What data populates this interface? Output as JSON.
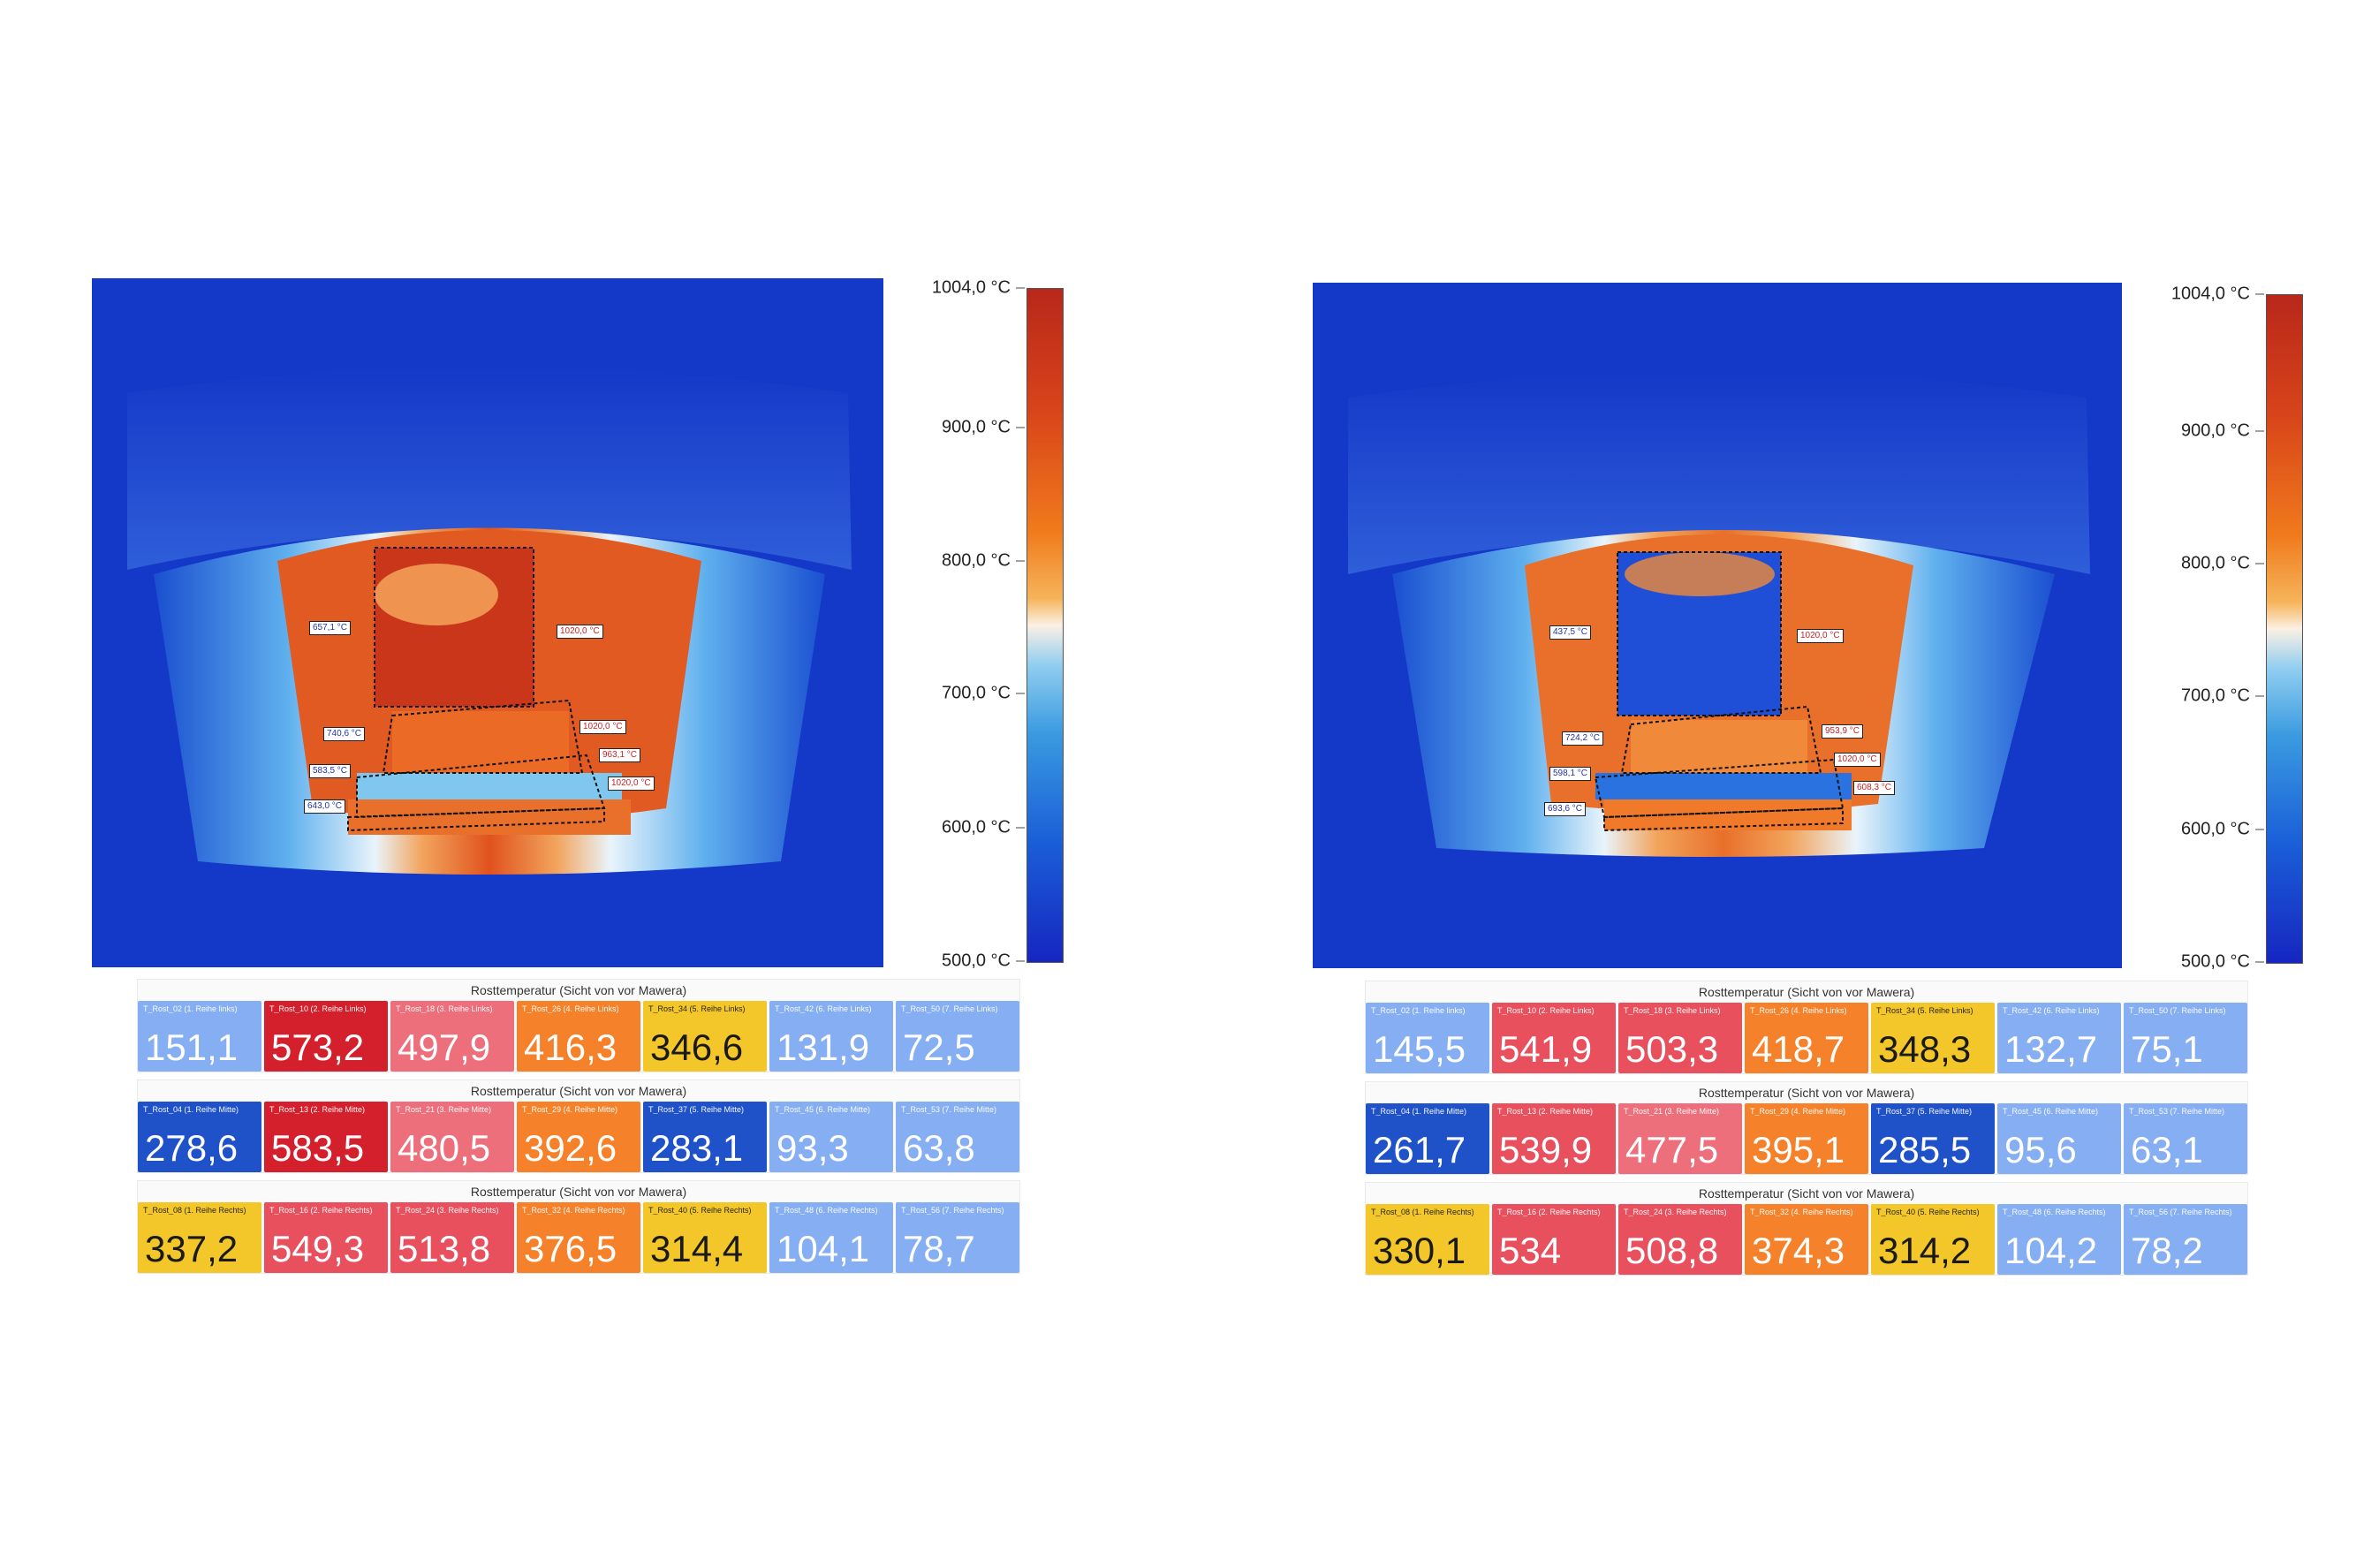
{
  "colors": {
    "thermal_background": "#1438c8",
    "hot": "#cf3a1c",
    "tile_red_dark": "#d4202c",
    "tile_red": "#e8505e",
    "tile_pink": "#ee6f7c",
    "tile_orange": "#f5822a",
    "tile_yellow": "#f3c629",
    "tile_blue_dark": "#1f52c8",
    "tile_blue_light": "#86aef2"
  },
  "panels": [
    {
      "colorbar": {
        "ticks": [
          "1004,0 °C",
          "900,0 °C",
          "800,0 °C",
          "700,0 °C",
          "600,0 °C",
          "500,0 °C"
        ]
      },
      "annotations": [
        {
          "text": "657,1 °C",
          "color": "blue"
        },
        {
          "text": "1020,0 °C",
          "color": "red"
        },
        {
          "text": "740,6 °C",
          "color": "blue"
        },
        {
          "text": "1020,0 °C",
          "color": "red"
        },
        {
          "text": "583,5 °C",
          "color": "blue"
        },
        {
          "text": "963,1 °C",
          "color": "red"
        },
        {
          "text": "1020,0 °C",
          "color": "red"
        },
        {
          "text": "643,0 °C",
          "color": "blue"
        }
      ],
      "groups": [
        {
          "title": "Rosttemperatur (Sicht von vor Mawera)",
          "tiles": [
            {
              "label": "T_Rost_02 (1. Reihe links)",
              "value": "151,1",
              "color": "blue_light"
            },
            {
              "label": "T_Rost_10 (2. Reihe Links)",
              "value": "573,2",
              "color": "red_dark"
            },
            {
              "label": "T_Rost_18 (3. Reihe Links)",
              "value": "497,9",
              "color": "pink"
            },
            {
              "label": "T_Rost_26 (4. Reihe Links)",
              "value": "416,3",
              "color": "orange"
            },
            {
              "label": "T_Rost_34 (5. Reihe Links)",
              "value": "346,6",
              "color": "yellow"
            },
            {
              "label": "T_Rost_42 (6. Reihe Links)",
              "value": "131,9",
              "color": "blue_light"
            },
            {
              "label": "T_Rost_50 (7. Reihe Links)",
              "value": "72,5",
              "color": "blue_light"
            }
          ]
        },
        {
          "title": "Rosttemperatur (Sicht von vor Mawera)",
          "tiles": [
            {
              "label": "T_Rost_04 (1. Reihe Mitte)",
              "value": "278,6",
              "color": "blue_dark"
            },
            {
              "label": "T_Rost_13 (2. Reihe Mitte)",
              "value": "583,5",
              "color": "red_dark"
            },
            {
              "label": "T_Rost_21 (3. Reihe Mitte)",
              "value": "480,5",
              "color": "pink"
            },
            {
              "label": "T_Rost_29 (4. Reihe Mitte)",
              "value": "392,6",
              "color": "orange"
            },
            {
              "label": "T_Rost_37 (5. Reihe Mitte)",
              "value": "283,1",
              "color": "blue_dark"
            },
            {
              "label": "T_Rost_45 (6. Reihe Mitte)",
              "value": "93,3",
              "color": "blue_light"
            },
            {
              "label": "T_Rost_53 (7. Reihe Mitte)",
              "value": "63,8",
              "color": "blue_light"
            }
          ]
        },
        {
          "title": "Rosttemperatur (Sicht von vor Mawera)",
          "tiles": [
            {
              "label": "T_Rost_08 (1. Reihe Rechts)",
              "value": "337,2",
              "color": "yellow"
            },
            {
              "label": "T_Rost_16 (2. Reihe Rechts)",
              "value": "549,3",
              "color": "red"
            },
            {
              "label": "T_Rost_24 (3. Reihe Rechts)",
              "value": "513,8",
              "color": "red"
            },
            {
              "label": "T_Rost_32 (4. Reihe Rechts)",
              "value": "376,5",
              "color": "orange"
            },
            {
              "label": "T_Rost_40 (5. Reihe Rechts)",
              "value": "314,4",
              "color": "yellow"
            },
            {
              "label": "T_Rost_48 (6. Reihe Rechts)",
              "value": "104,1",
              "color": "blue_light"
            },
            {
              "label": "T_Rost_56 (7. Reihe Rechts)",
              "value": "78,7",
              "color": "blue_light"
            }
          ]
        }
      ]
    },
    {
      "colorbar": {
        "ticks": [
          "1004,0 °C",
          "900,0 °C",
          "800,0 °C",
          "700,0 °C",
          "600,0 °C",
          "500,0 °C"
        ]
      },
      "annotations": [
        {
          "text": "437,5 °C",
          "color": "blue"
        },
        {
          "text": "1020,0 °C",
          "color": "red"
        },
        {
          "text": "724,2 °C",
          "color": "blue"
        },
        {
          "text": "953,9 °C",
          "color": "red"
        },
        {
          "text": "598,1 °C",
          "color": "blue"
        },
        {
          "text": "1020,0 °C",
          "color": "red"
        },
        {
          "text": "693,6 °C",
          "color": "blue"
        },
        {
          "text": "608,3 °C",
          "color": "red"
        }
      ],
      "groups": [
        {
          "title": "Rosttemperatur (Sicht von vor Mawera)",
          "tiles": [
            {
              "label": "T_Rost_02 (1. Reihe links)",
              "value": "145,5",
              "color": "blue_light"
            },
            {
              "label": "T_Rost_10 (2. Reihe Links)",
              "value": "541,9",
              "color": "red"
            },
            {
              "label": "T_Rost_18 (3. Reihe Links)",
              "value": "503,3",
              "color": "red"
            },
            {
              "label": "T_Rost_26 (4. Reihe Links)",
              "value": "418,7",
              "color": "orange"
            },
            {
              "label": "T_Rost_34 (5. Reihe Links)",
              "value": "348,3",
              "color": "yellow"
            },
            {
              "label": "T_Rost_42 (6. Reihe Links)",
              "value": "132,7",
              "color": "blue_light"
            },
            {
              "label": "T_Rost_50 (7. Reihe Links)",
              "value": "75,1",
              "color": "blue_light"
            }
          ]
        },
        {
          "title": "Rosttemperatur (Sicht von vor Mawera)",
          "tiles": [
            {
              "label": "T_Rost_04 (1. Reihe Mitte)",
              "value": "261,7",
              "color": "blue_dark"
            },
            {
              "label": "T_Rost_13 (2. Reihe Mitte)",
              "value": "539,9",
              "color": "red"
            },
            {
              "label": "T_Rost_21 (3. Reihe Mitte)",
              "value": "477,5",
              "color": "pink"
            },
            {
              "label": "T_Rost_29 (4. Reihe Mitte)",
              "value": "395,1",
              "color": "orange"
            },
            {
              "label": "T_Rost_37 (5. Reihe Mitte)",
              "value": "285,5",
              "color": "blue_dark"
            },
            {
              "label": "T_Rost_45 (6. Reihe Mitte)",
              "value": "95,6",
              "color": "blue_light"
            },
            {
              "label": "T_Rost_53 (7. Reihe Mitte)",
              "value": "63,1",
              "color": "blue_light"
            }
          ]
        },
        {
          "title": "Rosttemperatur (Sicht von vor Mawera)",
          "tiles": [
            {
              "label": "T_Rost_08 (1. Reihe Rechts)",
              "value": "330,1",
              "color": "yellow"
            },
            {
              "label": "T_Rost_16 (2. Reihe Rechts)",
              "value": "534",
              "color": "red"
            },
            {
              "label": "T_Rost_24 (3. Reihe Rechts)",
              "value": "508,8",
              "color": "red"
            },
            {
              "label": "T_Rost_32 (4. Reihe Rechts)",
              "value": "374,3",
              "color": "orange"
            },
            {
              "label": "T_Rost_40 (5. Reihe Rechts)",
              "value": "314,2",
              "color": "yellow"
            },
            {
              "label": "T_Rost_48 (6. Reihe Rechts)",
              "value": "104,2",
              "color": "blue_light"
            },
            {
              "label": "T_Rost_56 (7. Reihe Rechts)",
              "value": "78,2",
              "color": "blue_light"
            }
          ]
        }
      ]
    }
  ]
}
